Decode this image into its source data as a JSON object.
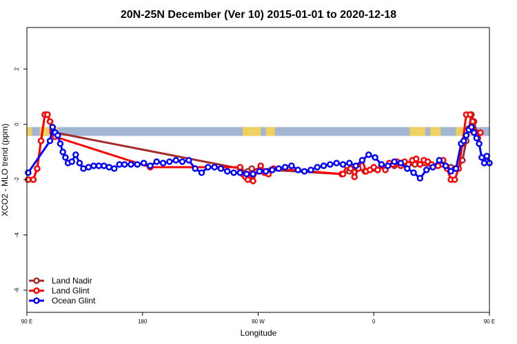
{
  "chart_data": {
    "type": "line",
    "title": "20N-25N December (Ver 10)   2015-01-01 to 2020-12-18",
    "xlabel": "Longitude",
    "ylabel": "XCO2 - MLO trend (ppm)",
    "xlim": [
      90,
      450
    ],
    "ylim": [
      -6.8,
      3.5
    ],
    "x_ticks": [
      {
        "value": 90,
        "label": "90 E"
      },
      {
        "value": 180,
        "label": "180"
      },
      {
        "value": 270,
        "label": "90 W"
      },
      {
        "value": 360,
        "label": "0"
      },
      {
        "value": 450,
        "label": "90 E"
      },
      {
        "value": 540,
        "label": "180"
      }
    ],
    "y_ticks": [
      {
        "value": 2,
        "label": "2"
      },
      {
        "value": 0,
        "label": "0"
      },
      {
        "value": -2,
        "label": "-2"
      },
      {
        "value": -4,
        "label": "-4"
      },
      {
        "value": -6,
        "label": "-6"
      }
    ],
    "legend_position": "bottom-left",
    "grid": false,
    "band_colors": {
      "ocean": "#a3b6d1",
      "land": "#f0d060"
    },
    "series": [
      {
        "name": "Land Nadir",
        "color": "#a52a2a",
        "x": [
          91,
          95,
          98,
          101,
          104,
          106,
          108,
          110,
          112,
          256,
          259,
          262,
          265,
          271,
          274,
          277,
          280,
          335,
          341,
          347,
          353,
          360,
          376,
          392,
          420,
          423,
          426,
          429,
          432,
          434,
          436,
          438,
          440
        ],
        "y": [
          -2.0,
          -2.0,
          -1.6,
          -0.6,
          0.35,
          0.35,
          0.1,
          -0.2,
          -0.3,
          -1.6,
          -1.75,
          -1.7,
          -1.6,
          -1.65,
          -1.7,
          -1.7,
          -1.65,
          -1.8,
          -1.7,
          -1.6,
          -1.7,
          -1.6,
          -1.5,
          -1.45,
          -1.55,
          -1.6,
          -1.6,
          -1.3,
          -0.6,
          -0.15,
          0.35,
          0.1,
          -0.3
        ]
      },
      {
        "name": "Land Glint",
        "color": "#ff0000",
        "x": [
          91,
          95,
          98,
          101,
          104,
          106,
          108,
          110,
          112,
          186,
          256,
          258,
          260,
          262,
          264,
          266,
          269,
          272,
          275,
          278,
          282,
          336,
          339,
          342,
          345,
          348,
          351,
          354,
          357,
          360,
          363,
          366,
          369,
          372,
          375,
          378,
          381,
          384,
          387,
          390,
          393,
          396,
          399,
          402,
          405,
          410,
          414,
          417,
          420,
          423,
          426,
          429,
          432,
          435,
          437,
          439,
          441,
          443
        ],
        "y": [
          -2.0,
          -2.0,
          -1.6,
          -0.6,
          0.35,
          0.35,
          0.1,
          -0.3,
          -0.45,
          -1.55,
          -1.55,
          -1.8,
          -1.9,
          -2.0,
          -1.8,
          -2.05,
          -1.7,
          -1.5,
          -1.75,
          -1.8,
          -1.6,
          -1.8,
          -1.5,
          -1.6,
          -1.9,
          -1.6,
          -1.3,
          -1.7,
          -1.65,
          -1.55,
          -1.65,
          -1.5,
          -1.65,
          -1.4,
          -1.45,
          -1.35,
          -1.5,
          -1.35,
          -1.45,
          -1.3,
          -1.25,
          -1.45,
          -1.3,
          -1.35,
          -1.45,
          -1.5,
          -1.3,
          -1.6,
          -2.0,
          -2.0,
          -1.6,
          -0.7,
          0.35,
          0.35,
          0.1,
          -0.3,
          -0.5,
          -0.3
        ]
      },
      {
        "name": "Ocean Glint",
        "color": "#0000ff",
        "x": [
          91,
          108,
          110,
          112,
          114,
          116,
          118,
          120,
          122,
          125,
          128,
          131,
          134,
          138,
          142,
          146,
          150,
          154,
          158,
          162,
          166,
          171,
          176,
          181,
          186,
          191,
          196,
          201,
          206,
          211,
          216,
          221,
          226,
          231,
          236,
          241,
          246,
          251,
          256,
          261,
          266,
          271,
          276,
          281,
          286,
          291,
          296,
          301,
          306,
          311,
          316,
          321,
          326,
          331,
          336,
          341,
          346,
          351,
          356,
          361,
          366,
          371,
          376,
          381,
          386,
          391,
          396,
          401,
          406,
          411,
          416,
          420,
          424,
          428,
          430,
          432,
          434,
          436,
          438,
          440,
          442,
          444,
          446,
          448,
          450
        ],
        "y": [
          -1.75,
          -0.6,
          -0.1,
          -0.3,
          -0.4,
          -0.7,
          -1.0,
          -1.2,
          -1.4,
          -1.35,
          -1.1,
          -1.4,
          -1.6,
          -1.55,
          -1.5,
          -1.5,
          -1.5,
          -1.55,
          -1.6,
          -1.45,
          -1.45,
          -1.45,
          -1.45,
          -1.4,
          -1.5,
          -1.35,
          -1.4,
          -1.35,
          -1.3,
          -1.35,
          -1.3,
          -1.6,
          -1.75,
          -1.55,
          -1.55,
          -1.6,
          -1.7,
          -1.75,
          -1.75,
          -1.8,
          -1.8,
          -1.7,
          -1.7,
          -1.65,
          -1.6,
          -1.55,
          -1.5,
          -1.65,
          -1.7,
          -1.65,
          -1.55,
          -1.5,
          -1.45,
          -1.4,
          -1.45,
          -1.4,
          -1.5,
          -1.3,
          -1.1,
          -1.2,
          -1.45,
          -1.5,
          -1.35,
          -1.4,
          -1.6,
          -1.75,
          -1.95,
          -1.65,
          -1.55,
          -1.3,
          -1.5,
          -1.7,
          -1.6,
          -0.7,
          -0.6,
          -0.4,
          -0.2,
          -0.1,
          -0.3,
          -0.5,
          -0.7,
          -1.2,
          -1.4,
          -1.15,
          -1.4
        ]
      }
    ]
  }
}
